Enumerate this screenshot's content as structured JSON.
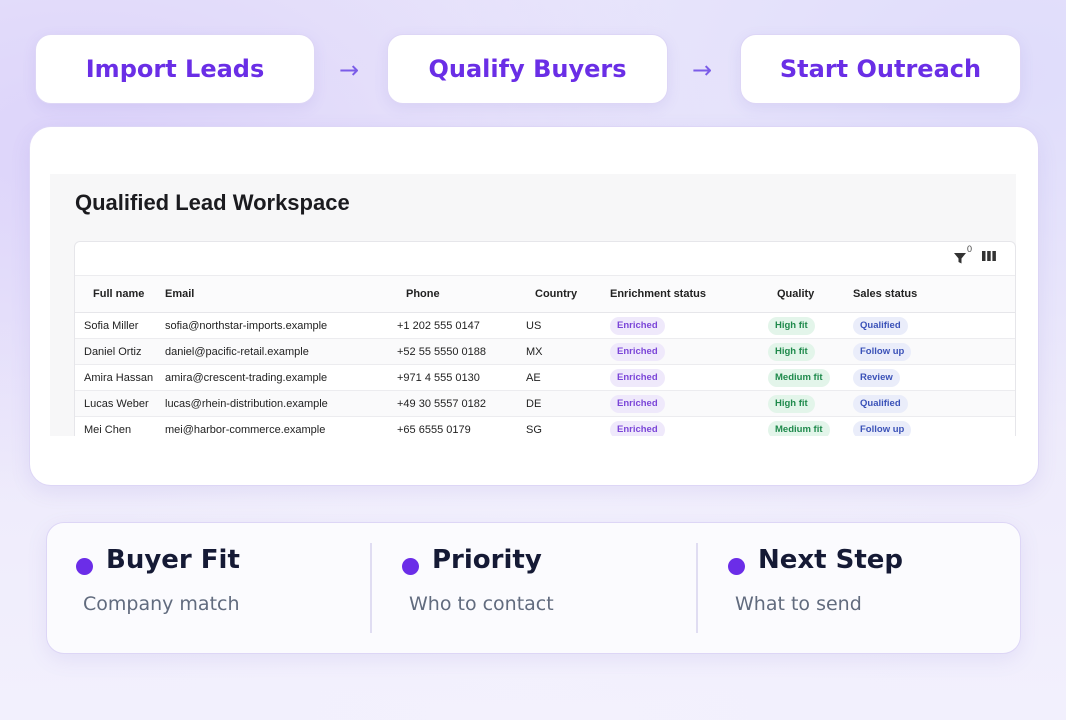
{
  "steps": [
    {
      "label": "Import Leads"
    },
    {
      "label": "Qualify Buyers"
    },
    {
      "label": "Start Outreach"
    }
  ],
  "arrow_glyph": "→",
  "workspace": {
    "title": "Qualified Lead Workspace",
    "filter_count": "0",
    "columns": [
      "Full name",
      "Email",
      "Phone",
      "Country",
      "Enrichment status",
      "Quality",
      "Sales status"
    ],
    "rows": [
      {
        "name": "Sofia Miller",
        "email": "sofia@northstar-imports.example",
        "phone": "+1 202 555 0147",
        "country": "US",
        "enrichment": "Enriched",
        "quality": "High fit",
        "sales": "Qualified"
      },
      {
        "name": "Daniel Ortiz",
        "email": "daniel@pacific-retail.example",
        "phone": "+52 55 5550 0188",
        "country": "MX",
        "enrichment": "Enriched",
        "quality": "High fit",
        "sales": "Follow up"
      },
      {
        "name": "Amira Hassan",
        "email": "amira@crescent-trading.example",
        "phone": "+971 4 555 0130",
        "country": "AE",
        "enrichment": "Enriched",
        "quality": "Medium fit",
        "sales": "Review"
      },
      {
        "name": "Lucas Weber",
        "email": "lucas@rhein-distribution.example",
        "phone": "+49 30 5557 0182",
        "country": "DE",
        "enrichment": "Enriched",
        "quality": "High fit",
        "sales": "Qualified"
      },
      {
        "name": "Mei Chen",
        "email": "mei@harbor-commerce.example",
        "phone": "+65 6555 0179",
        "country": "SG",
        "enrichment": "Enriched",
        "quality": "Medium fit",
        "sales": "Follow up"
      }
    ]
  },
  "features": [
    {
      "title": "Buyer Fit",
      "subtitle": "Company match"
    },
    {
      "title": "Priority",
      "subtitle": "Who to contact"
    },
    {
      "title": "Next Step",
      "subtitle": "What to send"
    }
  ],
  "colors": {
    "accent": "#6a2ee6",
    "enriched_pill": "#7b45d8",
    "fit_pill": "#1f8a4c",
    "sales_pill": "#3b52b8"
  },
  "icons": {
    "filter": "filter-icon",
    "columns": "columns-icon",
    "arrow": "arrow-right-icon",
    "bullet": "dot-icon"
  }
}
